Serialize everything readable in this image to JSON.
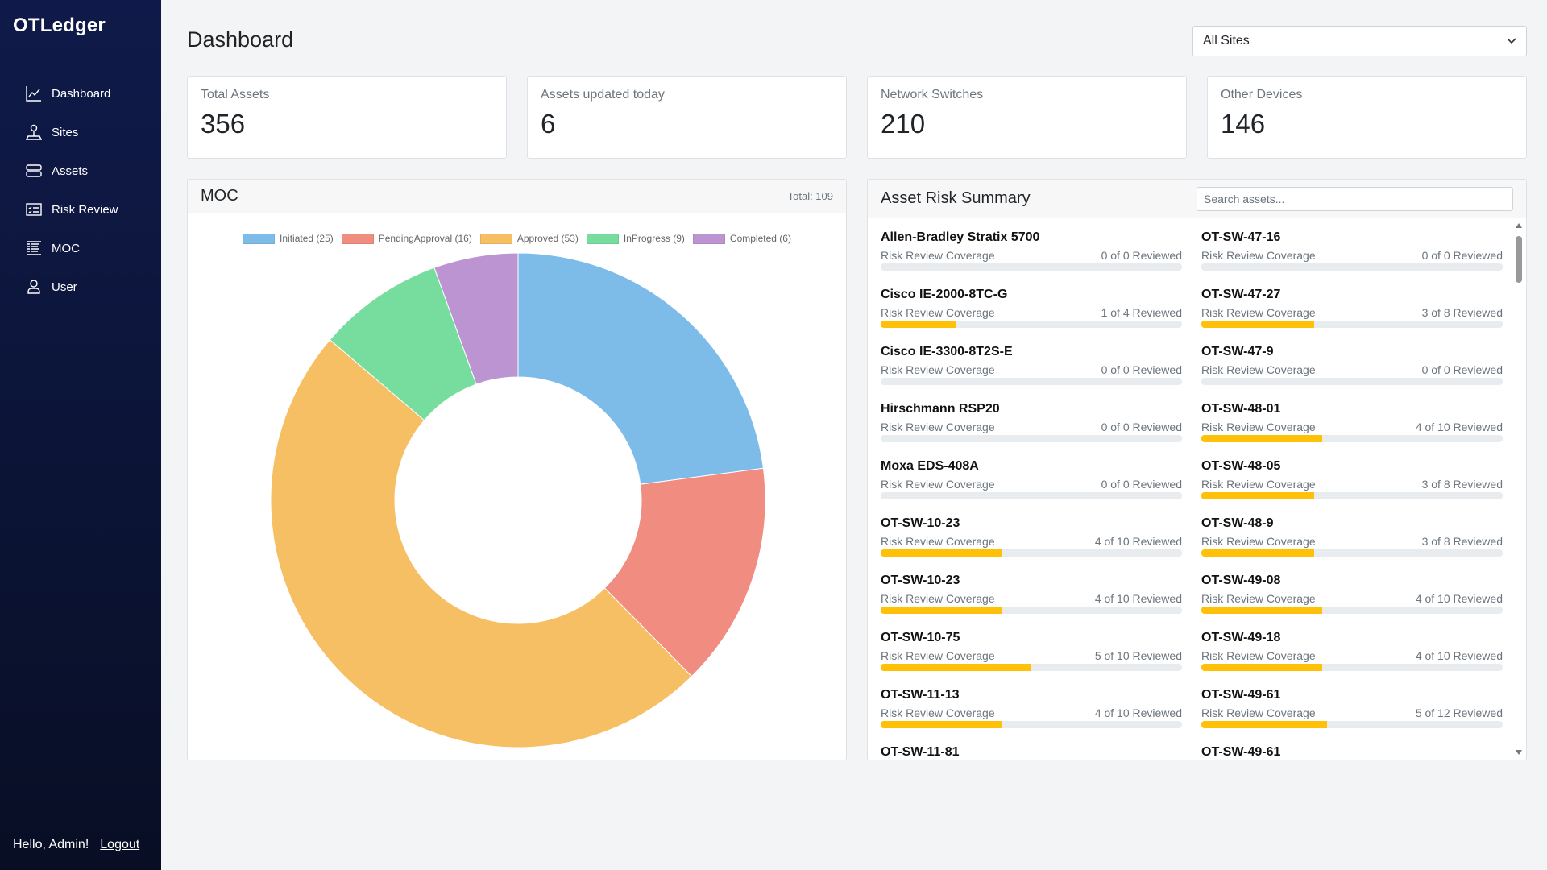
{
  "app": {
    "name": "OTLedger"
  },
  "sidebar": {
    "items": [
      {
        "label": "Dashboard",
        "icon": "chart-line-icon"
      },
      {
        "label": "Sites",
        "icon": "map-pin-icon"
      },
      {
        "label": "Assets",
        "icon": "server-icon"
      },
      {
        "label": "Risk Review",
        "icon": "checklist-icon"
      },
      {
        "label": "MOC",
        "icon": "list-icon"
      },
      {
        "label": "User",
        "icon": "user-icon"
      }
    ],
    "greeting": "Hello, Admin!",
    "logout": "Logout"
  },
  "header": {
    "title": "Dashboard",
    "site_select": "All Sites"
  },
  "cards": [
    {
      "label": "Total Assets",
      "value": "356"
    },
    {
      "label": "Assets updated today",
      "value": "6"
    },
    {
      "label": "Network Switches",
      "value": "210"
    },
    {
      "label": "Other Devices",
      "value": "146"
    }
  ],
  "moc": {
    "title": "MOC",
    "total": "Total: 109"
  },
  "chart_data": {
    "type": "pie",
    "donut": true,
    "categories": [
      "Initiated",
      "PendingApproval",
      "Approved",
      "InProgress",
      "Completed"
    ],
    "values": [
      25,
      16,
      53,
      9,
      6
    ],
    "legend_labels": [
      "Initiated (25)",
      "PendingApproval (16)",
      "Approved (53)",
      "InProgress (9)",
      "Completed (6)"
    ],
    "colors": [
      "#7dbbe8",
      "#f08c80",
      "#f6bf63",
      "#77dd9f",
      "#bd94d2"
    ],
    "legend": "top"
  },
  "assets": {
    "title": "Asset Risk Summary",
    "search_placeholder": "Search assets...",
    "coverage_label": "Risk Review Coverage",
    "accent": "#ffc107",
    "items": [
      {
        "name": "Allen-Bradley Stratix 5700",
        "reviewed": 0,
        "total": 0,
        "text": "0 of 0 Reviewed"
      },
      {
        "name": "OT-SW-47-16",
        "reviewed": 0,
        "total": 0,
        "text": "0 of 0 Reviewed"
      },
      {
        "name": "Cisco IE-2000-8TC-G",
        "reviewed": 1,
        "total": 4,
        "text": "1 of 4 Reviewed"
      },
      {
        "name": "OT-SW-47-27",
        "reviewed": 3,
        "total": 8,
        "text": "3 of 8 Reviewed"
      },
      {
        "name": "Cisco IE-3300-8T2S-E",
        "reviewed": 0,
        "total": 0,
        "text": "0 of 0 Reviewed"
      },
      {
        "name": "OT-SW-47-9",
        "reviewed": 0,
        "total": 0,
        "text": "0 of 0 Reviewed"
      },
      {
        "name": "Hirschmann RSP20",
        "reviewed": 0,
        "total": 0,
        "text": "0 of 0 Reviewed"
      },
      {
        "name": "OT-SW-48-01",
        "reviewed": 4,
        "total": 10,
        "text": "4 of 10 Reviewed"
      },
      {
        "name": "Moxa EDS-408A",
        "reviewed": 0,
        "total": 0,
        "text": "0 of 0 Reviewed"
      },
      {
        "name": "OT-SW-48-05",
        "reviewed": 3,
        "total": 8,
        "text": "3 of 8 Reviewed"
      },
      {
        "name": "OT-SW-10-23",
        "reviewed": 4,
        "total": 10,
        "text": "4 of 10 Reviewed"
      },
      {
        "name": "OT-SW-48-9",
        "reviewed": 3,
        "total": 8,
        "text": "3 of 8 Reviewed"
      },
      {
        "name": "OT-SW-10-23",
        "reviewed": 4,
        "total": 10,
        "text": "4 of 10 Reviewed"
      },
      {
        "name": "OT-SW-49-08",
        "reviewed": 4,
        "total": 10,
        "text": "4 of 10 Reviewed"
      },
      {
        "name": "OT-SW-10-75",
        "reviewed": 5,
        "total": 10,
        "text": "5 of 10 Reviewed"
      },
      {
        "name": "OT-SW-49-18",
        "reviewed": 4,
        "total": 10,
        "text": "4 of 10 Reviewed"
      },
      {
        "name": "OT-SW-11-13",
        "reviewed": 4,
        "total": 10,
        "text": "4 of 10 Reviewed"
      },
      {
        "name": "OT-SW-49-61",
        "reviewed": 5,
        "total": 12,
        "text": "5 of 12 Reviewed"
      },
      {
        "name": "OT-SW-11-81"
      },
      {
        "name": "OT-SW-49-61"
      }
    ]
  }
}
